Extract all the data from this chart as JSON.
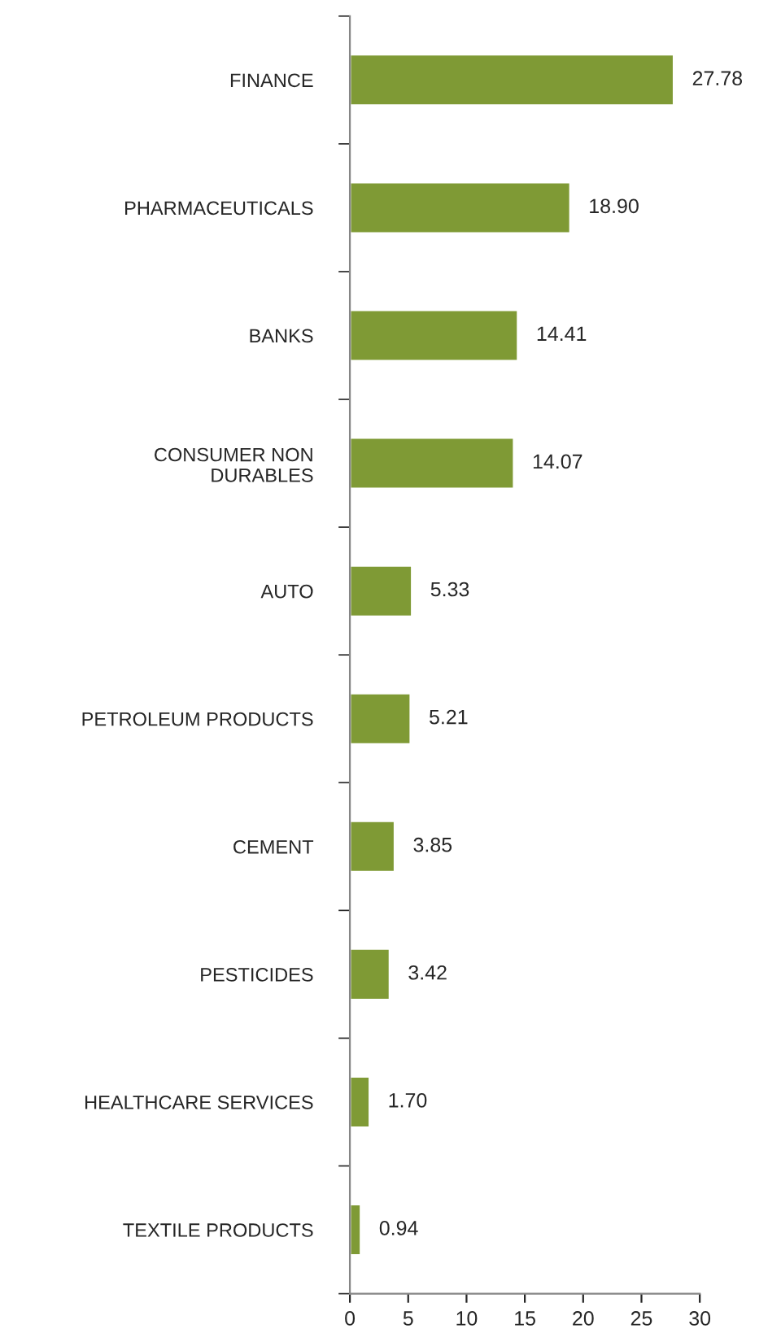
{
  "chart_data": {
    "type": "bar",
    "orientation": "horizontal",
    "categories": [
      "FINANCE",
      "PHARMACEUTICALS",
      "BANKS",
      "CONSUMER NON DURABLES",
      "AUTO",
      "PETROLEUM PRODUCTS",
      "CEMENT",
      "PESTICIDES",
      "HEALTHCARE SERVICES",
      "TEXTILE PRODUCTS"
    ],
    "values": [
      27.78,
      18.9,
      14.41,
      14.07,
      5.33,
      5.21,
      3.85,
      3.42,
      1.7,
      0.94
    ],
    "value_labels": [
      "27.78",
      "18.90",
      "14.41",
      "14.07",
      "5.33",
      "5.21",
      "3.85",
      "3.42",
      "1.70",
      "0.94"
    ],
    "color": "#7f9a35",
    "xlim": [
      0,
      30
    ],
    "xticks": [
      0,
      5,
      10,
      15,
      20,
      25,
      30
    ],
    "grid": false,
    "legend": false
  }
}
